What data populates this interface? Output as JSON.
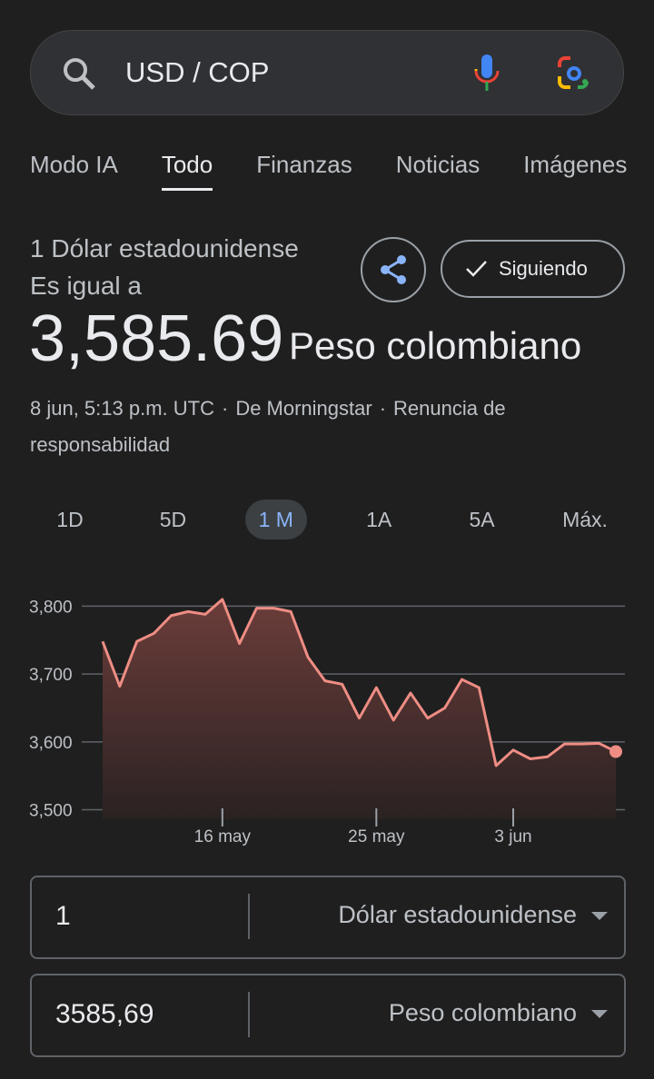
{
  "search": {
    "query": "USD / COP"
  },
  "tabs": {
    "items": [
      "Modo IA",
      "Todo",
      "Finanzas",
      "Noticias",
      "Imágenes"
    ],
    "active": 1
  },
  "result": {
    "from_label": "1 Dólar estadounidense",
    "equals": "Es igual a",
    "amount": "3,585.69",
    "to_label": "Peso colombiano",
    "follow": "Siguiendo",
    "meta": [
      "8 jun, 5:13 p.m. UTC",
      "De Morningstar",
      "Renuncia de responsabilidad"
    ]
  },
  "ranges": {
    "items": [
      "1D",
      "5D",
      "1 M",
      "1A",
      "5A",
      "Máx."
    ],
    "active": 2
  },
  "chart_data": {
    "type": "line",
    "categories": [
      null,
      null,
      null,
      null,
      null,
      null,
      null,
      "16 may",
      null,
      null,
      null,
      null,
      null,
      null,
      null,
      null,
      "25 may",
      null,
      null,
      null,
      null,
      null,
      null,
      null,
      "3 jun",
      null,
      null,
      null,
      null,
      null,
      null
    ],
    "series": [
      {
        "name": "USD / COP",
        "color": "#ee8d84",
        "values": [
          3748,
          3682,
          3748,
          3760,
          3786,
          3792,
          3788,
          3810,
          3745,
          3797,
          3797,
          3792,
          3725,
          3690,
          3685,
          3635,
          3680,
          3632,
          3672,
          3635,
          3650,
          3692,
          3680,
          3565,
          3588,
          3575,
          3578,
          3597,
          3597,
          3598,
          3585.69
        ]
      }
    ],
    "ylim": [
      3486,
      3830
    ],
    "yticks": [
      {
        "value": 3500,
        "label": "3,500"
      },
      {
        "value": 3600,
        "label": "3,600"
      },
      {
        "value": 3700,
        "label": "3,700"
      },
      {
        "value": 3800,
        "label": "3,800"
      }
    ],
    "grid": true
  },
  "converter": {
    "rows": [
      {
        "amount": "1",
        "currency": "Dólar estadounidense"
      },
      {
        "amount": "3585,69",
        "currency": "Peso colombiano"
      }
    ]
  }
}
